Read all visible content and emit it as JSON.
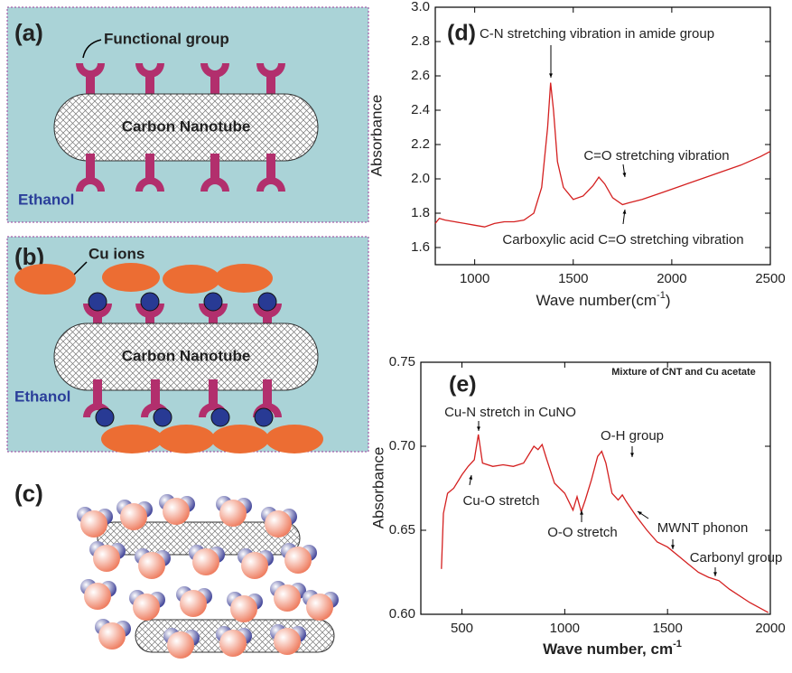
{
  "panels": {
    "a": {
      "label": "(a)",
      "functional_group": "Functional group",
      "nanotube": "Carbon Nanotube",
      "solvent": "Ethanol"
    },
    "b": {
      "label": "(b)",
      "ions": "Cu ions",
      "nanotube": "Carbon Nanotube",
      "solvent": "Ethanol"
    },
    "c": {
      "label": "(c)"
    }
  },
  "chart_data": [
    {
      "type": "line",
      "label": "(d)",
      "y_label": "Absorbance",
      "x_label": "Wave number(cm",
      "x_label_sup": "-1",
      "x_label_end": ")",
      "annotations": [
        "C-N stretching vibration in amide group",
        "C=O stretching vibration",
        "Carboxylic acid C=O stretching vibration"
      ],
      "xlim": [
        800,
        2500
      ],
      "xticks": [
        1000,
        1500,
        2000,
        2500
      ],
      "ylim": [
        1.5,
        3.0
      ],
      "yticks": [
        1.6,
        1.8,
        {
          "value": 2,
          "label": "2.0"
        },
        2.2,
        2.4,
        2.6,
        2.8,
        {
          "value": 3,
          "label": "3.0"
        }
      ],
      "color": "#d42020",
      "x": [
        800,
        820,
        850,
        900,
        950,
        1000,
        1050,
        1100,
        1150,
        1200,
        1250,
        1300,
        1340,
        1370,
        1385,
        1400,
        1420,
        1450,
        1500,
        1550,
        1600,
        1630,
        1660,
        1700,
        1750,
        1780,
        1850,
        1950,
        2050,
        2150,
        2250,
        2350,
        2450,
        2500
      ],
      "values": [
        1.74,
        1.77,
        1.76,
        1.75,
        1.74,
        1.73,
        1.72,
        1.74,
        1.75,
        1.75,
        1.76,
        1.8,
        1.95,
        2.3,
        2.56,
        2.4,
        2.1,
        1.95,
        1.88,
        1.9,
        1.96,
        2.01,
        1.97,
        1.89,
        1.85,
        1.86,
        1.88,
        1.92,
        1.96,
        2.0,
        2.04,
        2.08,
        2.13,
        2.16
      ]
    },
    {
      "type": "line",
      "label": "(e)",
      "title": "Mixture of CNT and Cu acetate",
      "y_label": "Absorbance",
      "x_label": "Wave number, cm",
      "x_label_sup": "-1",
      "annotations": [
        "Cu-N stretch in CuNO",
        "Cu-O stretch",
        "O-O stretch",
        "O-H group",
        "MWNT phonon",
        "Carbonyl group"
      ],
      "xlim": [
        300,
        2000
      ],
      "xticks": [
        500,
        1000,
        1500,
        2000
      ],
      "ylim": [
        0.6,
        0.75
      ],
      "yticks": [
        {
          "value": 0.6,
          "label": "0.60"
        },
        0.65,
        {
          "value": 0.7,
          "label": "0.70"
        },
        0.75
      ],
      "color": "#d42020",
      "x": [
        400,
        410,
        430,
        460,
        500,
        530,
        560,
        580,
        600,
        650,
        700,
        750,
        800,
        850,
        870,
        890,
        910,
        950,
        1000,
        1040,
        1060,
        1080,
        1100,
        1130,
        1160,
        1180,
        1200,
        1230,
        1260,
        1280,
        1300,
        1350,
        1400,
        1450,
        1500,
        1550,
        1600,
        1650,
        1700,
        1750,
        1800,
        1900,
        1990
      ],
      "values": [
        0.627,
        0.66,
        0.672,
        0.675,
        0.683,
        0.688,
        0.692,
        0.707,
        0.69,
        0.688,
        0.689,
        0.688,
        0.69,
        0.7,
        0.698,
        0.701,
        0.693,
        0.678,
        0.672,
        0.662,
        0.67,
        0.661,
        0.668,
        0.68,
        0.694,
        0.697,
        0.69,
        0.672,
        0.668,
        0.671,
        0.667,
        0.658,
        0.65,
        0.643,
        0.64,
        0.635,
        0.63,
        0.625,
        0.622,
        0.62,
        0.615,
        0.607,
        0.601
      ]
    }
  ]
}
